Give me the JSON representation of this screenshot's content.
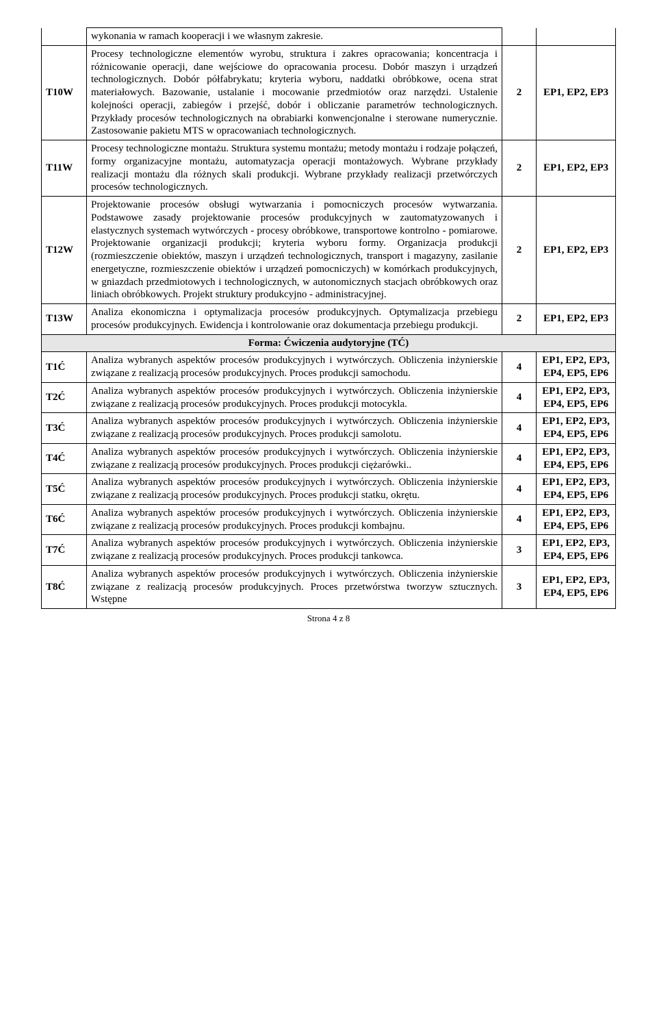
{
  "rows": [
    {
      "code": "",
      "desc": "wykonania w ramach kooperacji i we własnym zakresie.",
      "num": "",
      "ep": "",
      "noSides": true
    },
    {
      "code": "T10W",
      "desc": "Procesy technologiczne elementów wyrobu, struktura i zakres opracowania; koncentracja i różnicowanie operacji, dane wejściowe do opracowania procesu. Dobór maszyn i urządzeń technologicznych. Dobór półfabrykatu; kryteria wyboru, naddatki obróbkowe, ocena strat materiałowych. Bazowanie, ustalanie i mocowanie przedmiotów oraz narzędzi. Ustalenie kolejności operacji, zabiegów i przejść, dobór i obliczanie parametrów technologicznych. Przykłady procesów technologicznych na obrabiarki konwencjonalne i sterowane numerycznie. Zastosowanie pakietu MTS w opracowaniach technologicznych.",
      "num": "2",
      "ep": "EP1, EP2, EP3"
    },
    {
      "code": "T11W",
      "desc": "Procesy technologiczne montażu. Struktura systemu montażu; metody montażu i rodzaje połączeń, formy organizacyjne montażu, automatyzacja operacji montażowych. Wybrane przykłady realizacji montażu dla różnych skali produkcji. Wybrane przykłady realizacji przetwórczych procesów technologicznych.",
      "num": "2",
      "ep": "EP1, EP2, EP3"
    },
    {
      "code": "T12W",
      "desc": "Projektowanie procesów obsługi wytwarzania i pomocniczych procesów wytwarzania. Podstawowe zasady projektowanie procesów produkcyjnych w zautomatyzowanych i elastycznych systemach wytwórczych - procesy obróbkowe, transportowe kontrolno - pomiarowe. Projektowanie organizacji produkcji; kryteria wyboru formy. Organizacja produkcji (rozmieszczenie obiektów, maszyn i urządzeń technologicznych, transport i magazyny, zasilanie energetyczne, rozmieszczenie obiektów i urządzeń pomocniczych) w komórkach produkcyjnych, w gniazdach przedmiotowych i technologicznych, w autonomicznych stacjach obróbkowych oraz liniach obróbkowych. Projekt struktury produkcyjno - administracyjnej.",
      "num": "2",
      "ep": "EP1, EP2, EP3"
    },
    {
      "code": "T13W",
      "desc": "Analiza ekonomiczna i optymalizacja procesów produkcyjnych. Optymalizacja przebiegu procesów produkcyjnych. Ewidencja i kontrolowanie oraz dokumentacja przebiegu produkcji.",
      "num": "2",
      "ep": "EP1, EP2, EP3"
    }
  ],
  "sectionTitle": "Forma: Ćwiczenia audytoryjne (TĆ)",
  "rows2": [
    {
      "code": "T1Ć",
      "desc": "Analiza wybranych aspektów procesów produkcyjnych i wytwórczych. Obliczenia inżynierskie związane z realizacją procesów produkcyjnych. Proces produkcji samochodu.",
      "num": "4",
      "ep": "EP1, EP2, EP3, EP4, EP5, EP6"
    },
    {
      "code": "T2Ć",
      "desc": "Analiza wybranych aspektów procesów produkcyjnych i wytwórczych. Obliczenia inżynierskie związane z realizacją procesów produkcyjnych. Proces produkcji motocykla.",
      "num": "4",
      "ep": "EP1, EP2, EP3, EP4, EP5, EP6"
    },
    {
      "code": "T3Ć",
      "desc": "Analiza wybranych aspektów procesów produkcyjnych i wytwórczych. Obliczenia inżynierskie związane z realizacją procesów produkcyjnych. Proces produkcji samolotu.",
      "num": "4",
      "ep": "EP1, EP2, EP3, EP4, EP5, EP6"
    },
    {
      "code": "T4Ć",
      "desc": "Analiza wybranych aspektów procesów produkcyjnych i wytwórczych. Obliczenia inżynierskie związane z realizacją procesów produkcyjnych. Proces produkcji ciężarówki..",
      "num": "4",
      "ep": "EP1, EP2, EP3, EP4, EP5, EP6"
    },
    {
      "code": "T5Ć",
      "desc": "Analiza wybranych aspektów procesów produkcyjnych i wytwórczych. Obliczenia inżynierskie związane z realizacją procesów produkcyjnych. Proces produkcji statku, okrętu.",
      "num": "4",
      "ep": "EP1, EP2, EP3, EP4, EP5, EP6"
    },
    {
      "code": "T6Ć",
      "desc": "Analiza wybranych aspektów procesów produkcyjnych i wytwórczych. Obliczenia inżynierskie związane z realizacją procesów produkcyjnych. Proces produkcji kombajnu.",
      "num": "4",
      "ep": "EP1, EP2, EP3, EP4, EP5, EP6"
    },
    {
      "code": "T7Ć",
      "desc": "Analiza wybranych aspektów procesów produkcyjnych i wytwórczych. Obliczenia inżynierskie związane z realizacją procesów produkcyjnych. Proces produkcji tankowca.",
      "num": "3",
      "ep": "EP1, EP2, EP3, EP4, EP5, EP6"
    },
    {
      "code": "T8Ć",
      "desc": "Analiza wybranych aspektów procesów produkcyjnych i wytwórczych. Obliczenia inżynierskie związane z realizacją procesów produkcyjnych. Proces przetwórstwa tworzyw sztucznych. Wstępne",
      "num": "3",
      "ep": "EP1, EP2, EP3, EP4, EP5, EP6"
    }
  ],
  "footer": "Strona 4 z 8"
}
